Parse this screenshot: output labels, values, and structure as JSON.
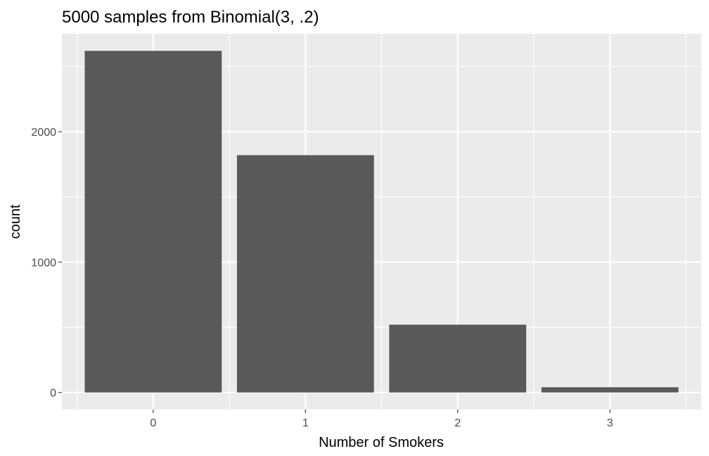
{
  "chart_data": {
    "type": "bar",
    "title": "5000 samples from Binomial(3, .2)",
    "xlabel": "Number of Smokers",
    "ylabel": "count",
    "categories": [
      "0",
      "1",
      "2",
      "3"
    ],
    "values": [
      2620,
      1820,
      520,
      40
    ],
    "yticks": [
      0,
      1000,
      2000
    ],
    "ytick_labels": [
      "0",
      "1000",
      "2000"
    ],
    "ylim": [
      -131,
      2751
    ],
    "grid": true,
    "legend": "none",
    "colors": {
      "bar": "#595959",
      "panel_background": "#ebebeb",
      "gridline": "#ffffff",
      "tick_text": "#4d4d4d",
      "tick_mark": "#333333"
    }
  }
}
